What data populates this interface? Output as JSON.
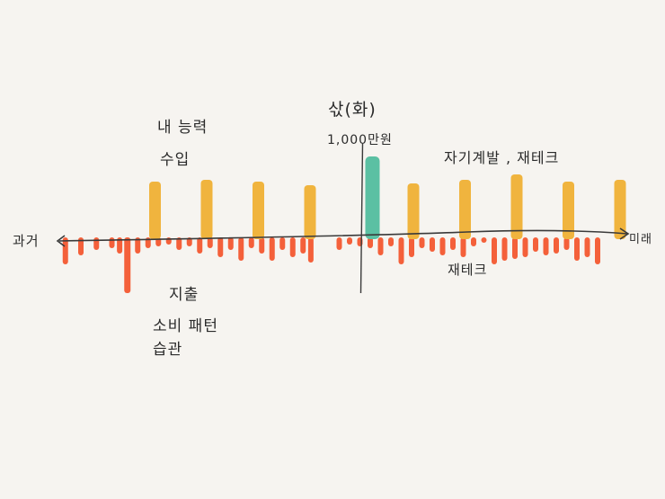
{
  "labels": {
    "income_line1": "내   능력",
    "income_line2": "수입",
    "debt_title": "삯(화)",
    "debt_amount": "1,000만원",
    "future_income": "자기계발 , 재테크",
    "past": "과거",
    "future": "미래",
    "future_expense": "재테크",
    "expense_line1": "지출",
    "expense_line2": "소비 패턴",
    "expense_line3": "습관"
  },
  "chart_data": {
    "type": "bar",
    "income_bars": [
      {
        "x": 1,
        "value": 64
      },
      {
        "x": 2,
        "value": 66
      },
      {
        "x": 3,
        "value": 64
      },
      {
        "x": 4,
        "value": 60
      },
      {
        "x": 6,
        "value": 62
      },
      {
        "x": 7,
        "value": 66
      },
      {
        "x": 8,
        "value": 72
      },
      {
        "x": 9,
        "value": 64
      },
      {
        "x": 10,
        "value": 66
      }
    ],
    "debt_bar": {
      "x": 5,
      "value": 92
    },
    "expense_bars": [
      {
        "x": 0.1,
        "v": 30
      },
      {
        "x": 0.4,
        "v": 20
      },
      {
        "x": 0.7,
        "v": 14
      },
      {
        "x": 1.0,
        "v": 12
      },
      {
        "x": 1.15,
        "v": 18
      },
      {
        "x": 1.3,
        "v": 62
      },
      {
        "x": 1.5,
        "v": 18
      },
      {
        "x": 1.7,
        "v": 12
      },
      {
        "x": 1.9,
        "v": 10
      },
      {
        "x": 2.1,
        "v": 8
      },
      {
        "x": 2.3,
        "v": 14
      },
      {
        "x": 2.5,
        "v": 10
      },
      {
        "x": 2.7,
        "v": 18
      },
      {
        "x": 2.9,
        "v": 12
      },
      {
        "x": 3.1,
        "v": 22
      },
      {
        "x": 3.3,
        "v": 14
      },
      {
        "x": 3.5,
        "v": 26
      },
      {
        "x": 3.7,
        "v": 12
      },
      {
        "x": 3.9,
        "v": 18
      },
      {
        "x": 4.1,
        "v": 26
      },
      {
        "x": 4.3,
        "v": 14
      },
      {
        "x": 4.5,
        "v": 22
      },
      {
        "x": 4.7,
        "v": 18
      },
      {
        "x": 4.85,
        "v": 28
      },
      {
        "x": 5.4,
        "v": 14
      },
      {
        "x": 5.6,
        "v": 8
      },
      {
        "x": 5.8,
        "v": 10
      },
      {
        "x": 6.0,
        "v": 12
      },
      {
        "x": 6.2,
        "v": 20
      },
      {
        "x": 6.4,
        "v": 10
      },
      {
        "x": 6.6,
        "v": 30
      },
      {
        "x": 6.8,
        "v": 22
      },
      {
        "x": 7.0,
        "v": 12
      },
      {
        "x": 7.2,
        "v": 16
      },
      {
        "x": 7.4,
        "v": 20
      },
      {
        "x": 7.6,
        "v": 14
      },
      {
        "x": 7.8,
        "v": 22
      },
      {
        "x": 8.0,
        "v": 10
      },
      {
        "x": 8.2,
        "v": 6
      },
      {
        "x": 8.4,
        "v": 30
      },
      {
        "x": 8.6,
        "v": 26
      },
      {
        "x": 8.8,
        "v": 24
      },
      {
        "x": 9.0,
        "v": 22
      },
      {
        "x": 9.2,
        "v": 16
      },
      {
        "x": 9.4,
        "v": 20
      },
      {
        "x": 9.6,
        "v": 18
      },
      {
        "x": 9.8,
        "v": 14
      },
      {
        "x": 10.0,
        "v": 26
      },
      {
        "x": 10.2,
        "v": 22
      },
      {
        "x": 10.4,
        "v": 30
      }
    ],
    "divider_x": 5,
    "colors": {
      "income": "#f0b43e",
      "debt": "#5bc0a3",
      "expense": "#f4603a",
      "axis": "#3a3a3a",
      "divider": "#3a3a3a"
    }
  }
}
